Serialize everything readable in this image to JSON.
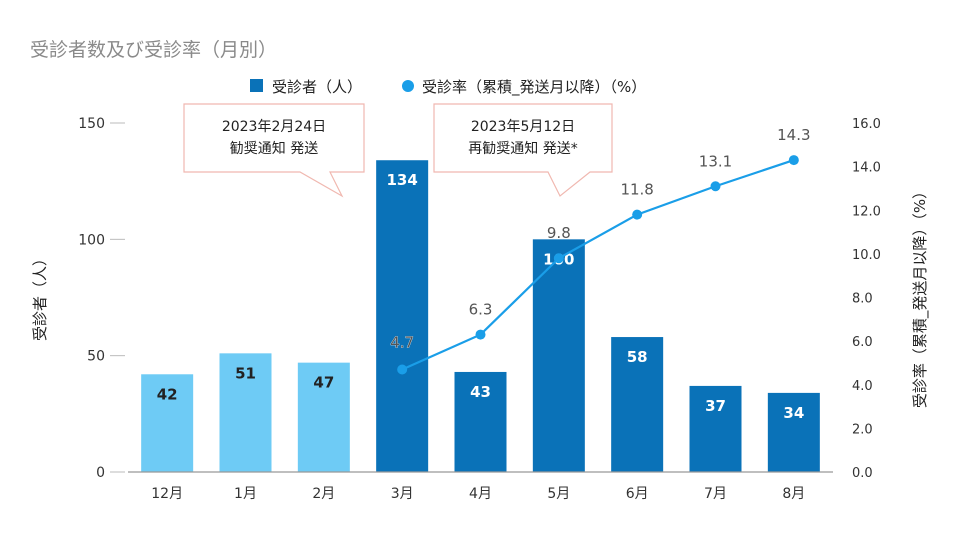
{
  "chart_data": {
    "type": "bar",
    "title": "受診者数及び受診率（月別）",
    "categories": [
      "12月",
      "1月",
      "2月",
      "3月",
      "4月",
      "5月",
      "6月",
      "7月",
      "8月"
    ],
    "series": [
      {
        "name": "受診者（人）",
        "type": "bar",
        "axis": "left",
        "values": [
          42,
          51,
          47,
          134,
          43,
          100,
          58,
          37,
          34
        ],
        "labels": [
          "42",
          "51",
          "47",
          "134",
          "43",
          "100",
          "58",
          "37",
          "34"
        ],
        "colors": [
          "#6ecbf5",
          "#6ecbf5",
          "#6ecbf5",
          "#0a72b8",
          "#0a72b8",
          "#0a72b8",
          "#0a72b8",
          "#0a72b8",
          "#0a72b8"
        ]
      },
      {
        "name": "受診率（累積_発送月以降）（%）",
        "type": "line",
        "axis": "right",
        "color": "#1a9ee8",
        "values": [
          null,
          null,
          null,
          4.7,
          6.3,
          9.8,
          11.8,
          13.1,
          14.3
        ],
        "labels": [
          "",
          "",
          "",
          "4.7",
          "6.3",
          "9.8",
          "11.8",
          "13.1",
          "14.3"
        ]
      }
    ],
    "ylabel": "受診者（人）",
    "ylim": [
      0,
      150
    ],
    "yticks": [
      "0",
      "50",
      "100",
      "150"
    ],
    "y2label": "受診率（累積_発送月以降）（%）",
    "y2lim": [
      0,
      16
    ],
    "y2ticks": [
      "0.0",
      "2.0",
      "4.0",
      "6.0",
      "8.0",
      "10.0",
      "12.0",
      "14.0",
      "16.0"
    ],
    "grid": false,
    "legend_position": "top-center",
    "annotations": [
      {
        "lines": [
          "2023年2月24日",
          "勧奨通知 発送"
        ],
        "category_index": 2
      },
      {
        "lines": [
          "2023年5月12日",
          "再勧奨通知 発送*"
        ],
        "category_index": 5
      }
    ],
    "colors": {
      "bar_before": "#6ecbf5",
      "bar_after": "#0a72b8",
      "line": "#1a9ee8",
      "callout_border": "#f0b8b0"
    }
  }
}
